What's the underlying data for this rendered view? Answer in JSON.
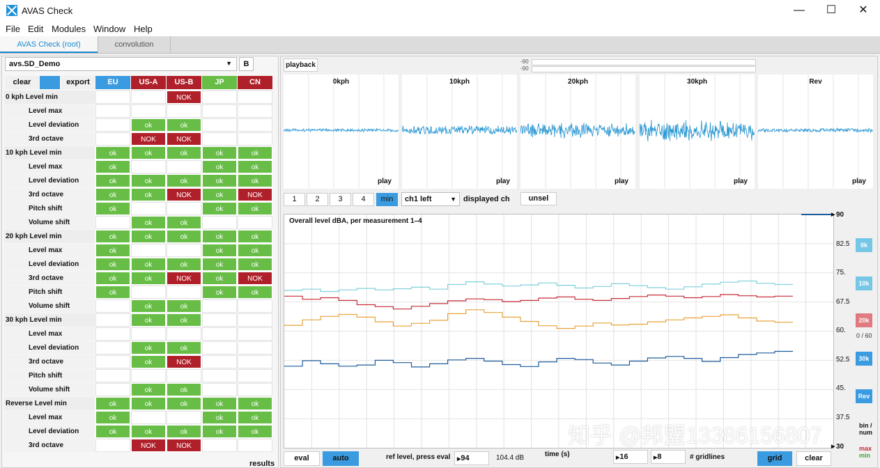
{
  "window": {
    "title": "AVAS Check",
    "minimize": "—",
    "maximize": "☐",
    "close": "✕"
  },
  "menu": [
    "File",
    "Edit",
    "Modules",
    "Window",
    "Help"
  ],
  "tabs": [
    {
      "label": "AVAS Check (root)"
    },
    {
      "label": "convolution"
    }
  ],
  "left": {
    "dropdown_value": "avs.SD_Demo",
    "b_label": "B",
    "clear_label": "clear",
    "export_label": "export",
    "columns": [
      "EU",
      "US-A",
      "US-B",
      "JP",
      "CN"
    ],
    "column_colors": [
      "#3b9be0",
      "#b0202a",
      "#b0202a",
      "#67bd45",
      "#b0202a"
    ],
    "rows": [
      {
        "label": "0 kph Level min",
        "sub": false,
        "cells": [
          "",
          "",
          "NOK",
          "",
          ""
        ]
      },
      {
        "label": "Level max",
        "sub": true,
        "cells": [
          "",
          "",
          "",
          "",
          ""
        ]
      },
      {
        "label": "Level deviation",
        "sub": true,
        "cells": [
          "",
          "ok",
          "ok",
          "",
          ""
        ]
      },
      {
        "label": "3rd octave",
        "sub": true,
        "cells": [
          "",
          "NOK",
          "NOK",
          "",
          ""
        ]
      },
      {
        "label": "10 kph Level min",
        "sub": false,
        "cells": [
          "ok",
          "ok",
          "ok",
          "ok",
          "ok"
        ]
      },
      {
        "label": "Level max",
        "sub": true,
        "cells": [
          "ok",
          "",
          "",
          "ok",
          "ok"
        ]
      },
      {
        "label": "Level deviation",
        "sub": true,
        "cells": [
          "ok",
          "ok",
          "ok",
          "ok",
          "ok"
        ]
      },
      {
        "label": "3rd octave",
        "sub": true,
        "cells": [
          "ok",
          "ok",
          "NOK",
          "ok",
          "NOK"
        ]
      },
      {
        "label": "Pitch shift",
        "sub": true,
        "cells": [
          "ok",
          "",
          "",
          "ok",
          "ok"
        ]
      },
      {
        "label": "Volume shift",
        "sub": true,
        "cells": [
          "",
          "ok",
          "ok",
          "",
          ""
        ]
      },
      {
        "label": "20 kph Level min",
        "sub": false,
        "cells": [
          "ok",
          "ok",
          "ok",
          "ok",
          "ok"
        ]
      },
      {
        "label": "Level max",
        "sub": true,
        "cells": [
          "ok",
          "",
          "",
          "ok",
          "ok"
        ]
      },
      {
        "label": "Level deviation",
        "sub": true,
        "cells": [
          "ok",
          "ok",
          "ok",
          "ok",
          "ok"
        ]
      },
      {
        "label": "3rd octave",
        "sub": true,
        "cells": [
          "ok",
          "ok",
          "NOK",
          "ok",
          "NOK"
        ]
      },
      {
        "label": "Pitch shift",
        "sub": true,
        "cells": [
          "ok",
          "",
          "",
          "ok",
          "ok"
        ]
      },
      {
        "label": "Volume shift",
        "sub": true,
        "cells": [
          "",
          "ok",
          "ok",
          "",
          ""
        ]
      },
      {
        "label": "30 kph Level min",
        "sub": false,
        "cells": [
          "",
          "ok",
          "ok",
          "",
          ""
        ]
      },
      {
        "label": "Level max",
        "sub": true,
        "cells": [
          "",
          "",
          "",
          "",
          ""
        ]
      },
      {
        "label": "Level deviation",
        "sub": true,
        "cells": [
          "",
          "ok",
          "ok",
          "",
          ""
        ]
      },
      {
        "label": "3rd octave",
        "sub": true,
        "cells": [
          "",
          "ok",
          "NOK",
          "",
          ""
        ]
      },
      {
        "label": "Pitch shift",
        "sub": true,
        "cells": [
          "",
          "",
          "",
          "",
          ""
        ]
      },
      {
        "label": "Volume shift",
        "sub": true,
        "cells": [
          "",
          "ok",
          "ok",
          "",
          ""
        ]
      },
      {
        "label": "Reverse Level min",
        "sub": false,
        "cells": [
          "ok",
          "ok",
          "ok",
          "ok",
          "ok"
        ]
      },
      {
        "label": "Level max",
        "sub": true,
        "cells": [
          "ok",
          "",
          "",
          "ok",
          "ok"
        ]
      },
      {
        "label": "Level deviation",
        "sub": true,
        "cells": [
          "ok",
          "ok",
          "ok",
          "ok",
          "ok"
        ]
      },
      {
        "label": "3rd octave",
        "sub": true,
        "cells": [
          "",
          "NOK",
          "NOK",
          "",
          ""
        ]
      }
    ],
    "results_label": "results"
  },
  "right": {
    "playback_label": "playback",
    "meter_labels": [
      "-90",
      "-90"
    ],
    "waves": [
      {
        "title": "0kph",
        "play": "play",
        "amp": 0.04
      },
      {
        "title": "10kph",
        "play": "play",
        "amp": 0.12
      },
      {
        "title": "20kph",
        "play": "play",
        "amp": 0.2
      },
      {
        "title": "30kph",
        "play": "play",
        "amp": 0.28
      },
      {
        "title": "Rev",
        "play": "play",
        "amp": 0.05
      }
    ],
    "wave_color": "#2f9ad4",
    "pages": [
      "1",
      "2",
      "3",
      "4",
      "min"
    ],
    "channel": "ch1 left",
    "displayed_ch_label": "displayed ch",
    "unsel_label": "unsel",
    "chart_title": "Overall level dBA, per measurement 1–4",
    "yticks": [
      "90",
      "82.5",
      "75.",
      "67.5",
      "60.",
      "52.5",
      "45.",
      "37.5",
      "30"
    ],
    "legend": [
      {
        "label": "0k",
        "color": "#76c7e6"
      },
      {
        "label": "10k",
        "color": "#76c7e6"
      },
      {
        "label": "20k",
        "color": "#e07a80"
      },
      {
        "label": "30k",
        "color": "#3b9be0"
      },
      {
        "label": "Rev",
        "color": "#3b9be0"
      }
    ],
    "counter": "0 / 60",
    "bin_label": "bin / num",
    "max_label": "max",
    "min_label": "min",
    "eval_label": "eval",
    "auto_label": "auto",
    "ref_level_label": "ref level, press eval",
    "ref_level_value": "94",
    "ref_db": "104.4 dB",
    "time_label": "time (s)",
    "field16": "16",
    "field8": "8",
    "gridlines_label": "# gridlines",
    "grid_label": "grid",
    "clear_label": "clear",
    "watermark": "知乎 @邦盟13386156807"
  },
  "chart_data": {
    "type": "line",
    "title": "Overall level dBA, per measurement 1–4",
    "ylim": [
      30,
      90
    ],
    "grid": true,
    "series": [
      {
        "color": "#7fd0dc",
        "values": [
          70.5,
          70.8,
          70.2,
          70.6,
          71.0,
          70.6,
          70.9,
          71.3,
          70.8,
          72.0,
          72.7,
          72.1,
          71.6,
          71.9,
          72.4,
          71.8,
          71.1,
          71.5,
          72.2,
          71.7,
          71.2,
          70.8,
          71.4,
          72.1,
          72.6,
          72.9,
          72.3,
          72.0
        ]
      },
      {
        "color": "#c62a36",
        "values": [
          69.0,
          68.2,
          68.6,
          67.9,
          66.8,
          66.3,
          65.7,
          66.4,
          67.1,
          67.8,
          68.3,
          68.1,
          67.6,
          67.9,
          68.5,
          68.8,
          68.2,
          67.9,
          68.4,
          68.9,
          69.3,
          69.0,
          68.6,
          68.9,
          69.4,
          69.1,
          68.8,
          69.0
        ]
      },
      {
        "color": "#e7a23a",
        "values": [
          61.5,
          62.9,
          63.8,
          64.3,
          63.6,
          62.4,
          61.3,
          62.0,
          62.8,
          64.5,
          65.5,
          64.8,
          63.6,
          62.5,
          61.4,
          60.7,
          61.3,
          62.1,
          61.6,
          61.8,
          62.4,
          62.9,
          63.4,
          63.8,
          64.2,
          63.4,
          62.6,
          62.3
        ]
      },
      {
        "color": "#1d5a9c",
        "values": [
          51.0,
          52.4,
          51.6,
          51.0,
          51.3,
          52.5,
          51.9,
          50.8,
          51.6,
          52.6,
          53.0,
          52.3,
          51.4,
          50.9,
          52.1,
          53.0,
          52.7,
          51.8,
          51.3,
          52.3,
          53.1,
          53.5,
          53.0,
          52.2,
          53.2,
          54.0,
          54.4,
          54.8
        ]
      }
    ]
  }
}
